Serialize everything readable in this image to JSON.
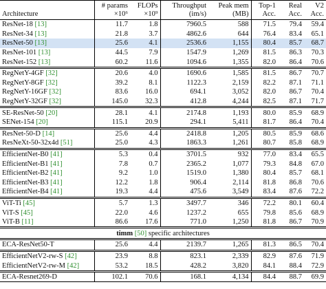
{
  "table": {
    "header": [
      {
        "line1": "Architecture",
        "line2": ""
      },
      {
        "line1": "# params",
        "line2": "×10⁶"
      },
      {
        "line1": "FLOPs",
        "line2": "×10⁹"
      },
      {
        "line1": "Throughput",
        "line2": "(im/s)"
      },
      {
        "line1": "Peak mem",
        "line2": "(MB)"
      },
      {
        "line1": "Top-1",
        "line2": "Acc."
      },
      {
        "line1": "Real",
        "line2": "Acc."
      },
      {
        "line1": "V2",
        "line2": "Acc."
      }
    ],
    "groups": [
      {
        "rows": [
          {
            "name": "ResNet-18",
            "ref": "[13]",
            "cells": [
              "11.7",
              "1.8",
              "7960.5",
              "588",
              "71.5",
              "79.4",
              "59.4"
            ]
          },
          {
            "name": "ResNet-34",
            "ref": "[13]",
            "cells": [
              "21.8",
              "3.7",
              "4862.6",
              "644",
              "76.4",
              "83.4",
              "65.1"
            ]
          },
          {
            "name": "ResNet-50",
            "ref": "[13]",
            "cells": [
              "25.6",
              "4.1",
              "2536.6",
              "1,155",
              "80.4",
              "85.7",
              "68.7"
            ],
            "highlight": true
          },
          {
            "name": "ResNet-101",
            "ref": "[13]",
            "cells": [
              "44.5",
              "7.9",
              "1547.9",
              "1,269",
              "81.5",
              "86.3",
              "70.3"
            ]
          },
          {
            "name": "ResNet-152",
            "ref": "[13]",
            "cells": [
              "60.2",
              "11.6",
              "1094.6",
              "1,355",
              "82.0",
              "86.4",
              "70.6"
            ]
          }
        ]
      },
      {
        "rows": [
          {
            "name": "RegNetY-4GF",
            "ref": "[32]",
            "cells": [
              "20.6",
              "4.0",
              "1690.6",
              "1,585",
              "81.5",
              "86.7",
              "70.7"
            ]
          },
          {
            "name": "RegNetY-8GF",
            "ref": "[32]",
            "cells": [
              "39.2",
              "8.1",
              "1122.3",
              "2,159",
              "82.2",
              "87.1",
              "71.1"
            ]
          },
          {
            "name": "RegNetY-16GF",
            "ref": "[32]",
            "cells": [
              "83.6",
              "16.0",
              "694.1",
              "3,052",
              "82.0",
              "86.7",
              "70.4"
            ]
          },
          {
            "name": "RegNetY-32GF",
            "ref": "[32]",
            "cells": [
              "145.0",
              "32.3",
              "412.8",
              "4,244",
              "82.5",
              "87.1",
              "71.7"
            ]
          }
        ]
      },
      {
        "rows": [
          {
            "name": "SE-ResNet-50",
            "ref": "[20]",
            "cells": [
              "28.1",
              "4.1",
              "2174.8",
              "1,193",
              "80.0",
              "85.9",
              "68.9"
            ]
          },
          {
            "name": "SENet-154",
            "ref": "[20]",
            "cells": [
              "115.1",
              "20.9",
              "294.1",
              "5,411",
              "81.7",
              "86.4",
              "70.4"
            ]
          }
        ]
      },
      {
        "rows": [
          {
            "name": "ResNet-50-D",
            "ref": "[14]",
            "cells": [
              "25.6",
              "4.4",
              "2418.8",
              "1,205",
              "80.5",
              "85.9",
              "68.6"
            ]
          },
          {
            "name": "ResNeXt-50-32x4d",
            "ref": "[51]",
            "cells": [
              "25.0",
              "4.3",
              "1863.3",
              "1,261",
              "80.7",
              "85.8",
              "68.9"
            ]
          }
        ]
      },
      {
        "rows": [
          {
            "name": "EfficientNet-B0",
            "ref": "[41]",
            "cells": [
              "5.3",
              "0.4",
              "3701.5",
              "932",
              "77.0",
              "83.4",
              "65.5"
            ]
          },
          {
            "name": "EfficientNet-B1",
            "ref": "[41]",
            "cells": [
              "7.8",
              "0.7",
              "2365.2",
              "1,077",
              "79.3",
              "84.8",
              "67.0"
            ]
          },
          {
            "name": "EfficientNet-B2",
            "ref": "[41]",
            "cells": [
              "9.2",
              "1.0",
              "1519.0",
              "1,380",
              "80.4",
              "85.7",
              "68.1"
            ]
          },
          {
            "name": "EfficientNet-B3",
            "ref": "[41]",
            "cells": [
              "12.2",
              "1.8",
              "906.4",
              "2,114",
              "81.8",
              "86.8",
              "70.6"
            ]
          },
          {
            "name": "EfficientNet-B4",
            "ref": "[41]",
            "cells": [
              "19.3",
              "4.4",
              "475.6",
              "3,549",
              "83.4",
              "87.6",
              "72.2"
            ]
          }
        ]
      },
      {
        "rows": [
          {
            "name": "ViT-Ti",
            "ref": "[45]",
            "cells": [
              "5.7",
              "1.3",
              "3497.7",
              "346",
              "72.2",
              "80.1",
              "60.4"
            ]
          },
          {
            "name": "ViT-S",
            "ref": "[45]",
            "cells": [
              "22.0",
              "4.6",
              "1237.2",
              "655",
              "79.8",
              "85.6",
              "68.9"
            ]
          },
          {
            "name": "ViT-B",
            "ref": "[11]",
            "cells": [
              "86.6",
              "17.6",
              "771.0",
              "1,250",
              "81.8",
              "86.7",
              "70.9"
            ]
          }
        ]
      }
    ],
    "section": {
      "prefix": "timm",
      "ref": "[50]",
      "suffix": "specific architectures"
    },
    "section_groups": [
      {
        "rows": [
          {
            "name": "ECA-ResNet50-T",
            "ref": "",
            "cells": [
              "25.6",
              "4.4",
              "2139.7",
              "1,265",
              "81.3",
              "86.5",
              "70.4"
            ]
          }
        ]
      },
      {
        "rows": [
          {
            "name": "EfficientNetV2-rw-S",
            "ref": "[42]",
            "cells": [
              "23.9",
              "8.8",
              "823.1",
              "2,339",
              "82.9",
              "87.6",
              "71.9"
            ]
          },
          {
            "name": "EfficientNetV2-rw-M",
            "ref": "[42]",
            "cells": [
              "53.2",
              "18.5",
              "428.2",
              "3,820",
              "84.1",
              "88.4",
              "72.9"
            ]
          }
        ]
      },
      {
        "rows": [
          {
            "name": "ECA-Resnet269-D",
            "ref": "",
            "cells": [
              "102.1",
              "70.6",
              "168.1",
              "4,134",
              "84.4",
              "88.7",
              "69.9"
            ]
          }
        ]
      }
    ]
  }
}
